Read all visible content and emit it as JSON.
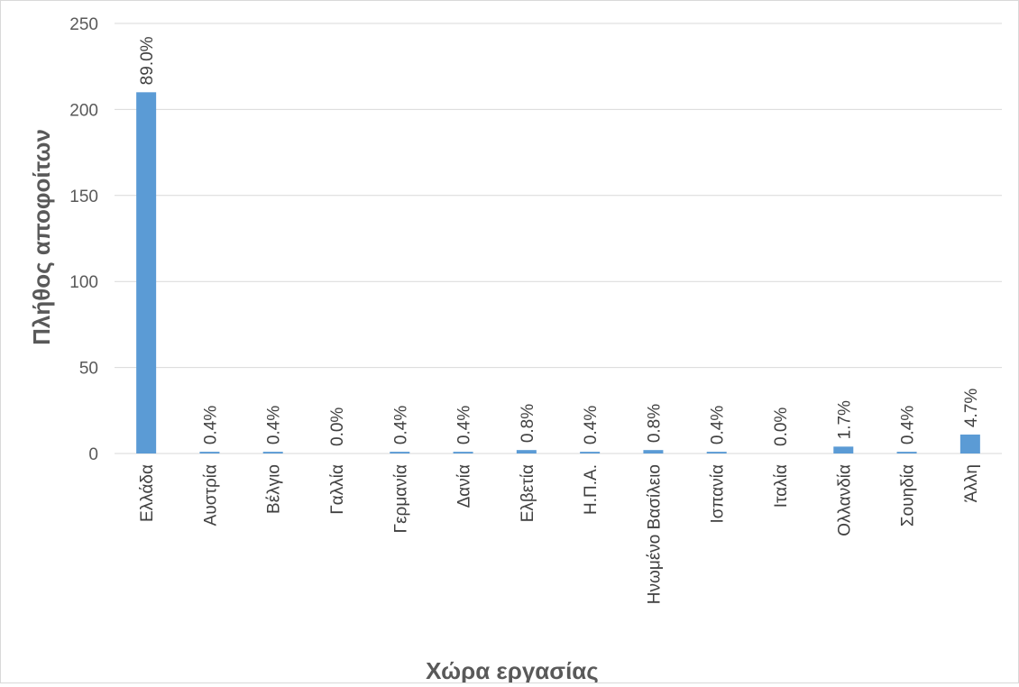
{
  "chart_data": {
    "type": "bar",
    "title": "",
    "xlabel": "Χώρα εργασίας",
    "ylabel": "Πλήθος αποφοίτων",
    "ylim": [
      0,
      250
    ],
    "yticks": [
      "0",
      "50",
      "100",
      "150",
      "200",
      "250"
    ],
    "grid": true,
    "legend": "none",
    "bar_color": "#5b9bd5",
    "categories": [
      "Ελλάδα",
      "Αυστρία",
      "Βέλγιο",
      "Γαλλία",
      "Γερμανία",
      "Δανία",
      "Ελβετία",
      "Η.Π.Α.",
      "Ηνωμένο Βασίλειο",
      "Ισπανία",
      "Ιταλία",
      "Ολλανδία",
      "Σουηδία",
      "Άλλη"
    ],
    "values": [
      210,
      1,
      1,
      0,
      1,
      1,
      2,
      1,
      2,
      1,
      0,
      4,
      1,
      11
    ],
    "data_labels": [
      "89.0%",
      "0.4%",
      "0.4%",
      "0.0%",
      "0.4%",
      "0.4%",
      "0.8%",
      "0.4%",
      "0.8%",
      "0.4%",
      "0.0%",
      "1.7%",
      "0.4%",
      "4.7%"
    ]
  }
}
